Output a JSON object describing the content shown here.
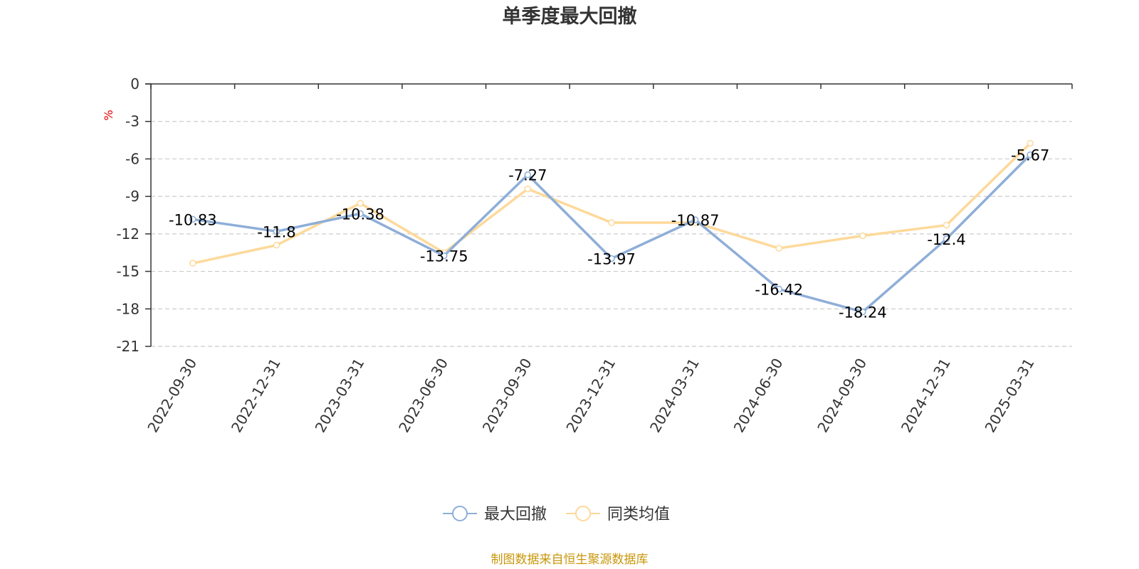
{
  "chart_data": {
    "type": "line",
    "title": "单季度最大回撤",
    "ylabel": "%",
    "ylim": [
      -21,
      0
    ],
    "yticks": [
      0,
      -3,
      -6,
      -9,
      -12,
      -15,
      -18,
      -21
    ],
    "grid": true,
    "legend_position": "bottom",
    "categories": [
      "2022-09-30",
      "2022-12-31",
      "2023-03-31",
      "2023-06-30",
      "2023-09-30",
      "2023-12-31",
      "2024-03-31",
      "2024-06-30",
      "2024-09-30",
      "2024-12-31",
      "2025-03-31"
    ],
    "series": [
      {
        "name": "最大回撤",
        "color": "#8eaed8",
        "values": [
          -10.83,
          -11.8,
          -10.38,
          -13.75,
          -7.27,
          -13.97,
          -10.87,
          -16.42,
          -18.24,
          -12.4,
          -5.67
        ],
        "value_labels": [
          "-10.83",
          "-11.8",
          "-10.38",
          "-13.75",
          "-7.27",
          "-13.97",
          "-10.87",
          "-16.42",
          "-18.24",
          "-12.4",
          "-5.67"
        ]
      },
      {
        "name": "同类均值",
        "color": "#fdd99a",
        "values": [
          -14.35,
          -12.9,
          -9.55,
          -13.5,
          -8.4,
          -11.1,
          -11.1,
          -13.15,
          -12.15,
          -11.3,
          -4.75
        ]
      }
    ],
    "source": "制图数据来自恒生聚源数据库"
  }
}
